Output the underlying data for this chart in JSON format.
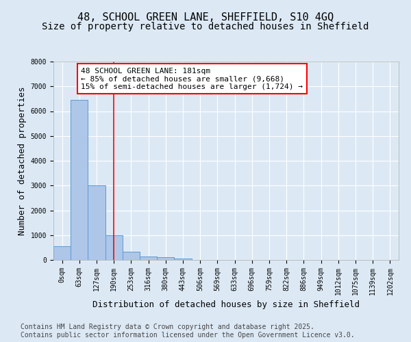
{
  "title_line1": "48, SCHOOL GREEN LANE, SHEFFIELD, S10 4GQ",
  "title_line2": "Size of property relative to detached houses in Sheffield",
  "bar_values": [
    560,
    6450,
    3000,
    1000,
    340,
    150,
    100,
    60,
    0,
    0,
    0,
    0,
    0,
    0,
    0,
    0,
    0,
    0,
    0,
    0
  ],
  "bin_labels": [
    "0sqm",
    "63sqm",
    "127sqm",
    "190sqm",
    "253sqm",
    "316sqm",
    "380sqm",
    "443sqm",
    "506sqm",
    "569sqm",
    "633sqm",
    "696sqm",
    "759sqm",
    "822sqm",
    "886sqm",
    "949sqm",
    "1012sqm",
    "1075sqm",
    "1139sqm",
    "1202sqm"
  ],
  "bar_color": "#aec6e8",
  "bar_edge_color": "#5b9bd5",
  "vline_x": 3,
  "vline_color": "red",
  "annotation_box_text": "48 SCHOOL GREEN LANE: 181sqm\n← 85% of detached houses are smaller (9,668)\n15% of semi-detached houses are larger (1,724) →",
  "annotation_facecolor": "white",
  "annotation_edgecolor": "red",
  "ylabel": "Number of detached properties",
  "xlabel": "Distribution of detached houses by size in Sheffield",
  "ylim": [
    0,
    8000
  ],
  "yticks": [
    0,
    1000,
    2000,
    3000,
    4000,
    5000,
    6000,
    7000,
    8000
  ],
  "footer_text": "Contains HM Land Registry data © Crown copyright and database right 2025.\nContains public sector information licensed under the Open Government Licence v3.0.",
  "background_color": "#dce9f5",
  "plot_background_color": "#dce9f5",
  "grid_color": "white",
  "title_fontsize": 11,
  "subtitle_fontsize": 10,
  "axis_label_fontsize": 9,
  "tick_fontsize": 7,
  "annotation_fontsize": 8,
  "footer_fontsize": 7
}
